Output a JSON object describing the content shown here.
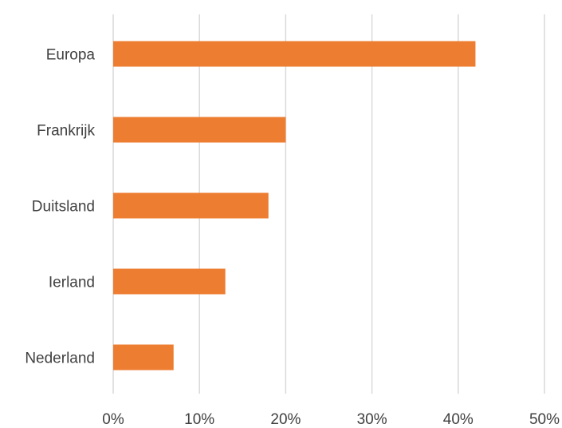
{
  "chart_data": {
    "type": "bar",
    "orientation": "horizontal",
    "categories": [
      "Europa",
      "Frankrijk",
      "Duitsland",
      "Ierland",
      "Nederland"
    ],
    "values": [
      42,
      20,
      18,
      13,
      7
    ],
    "xlim": [
      0,
      50
    ],
    "x_ticks": [
      "0%",
      "10%",
      "20%",
      "30%",
      "40%",
      "50%"
    ],
    "title": "",
    "xlabel": "",
    "ylabel": "",
    "grid": "vertical",
    "legend": "none",
    "colors": {
      "bar": "#ED7D31",
      "grid": "#D9D9D9",
      "text": "#404040"
    }
  }
}
